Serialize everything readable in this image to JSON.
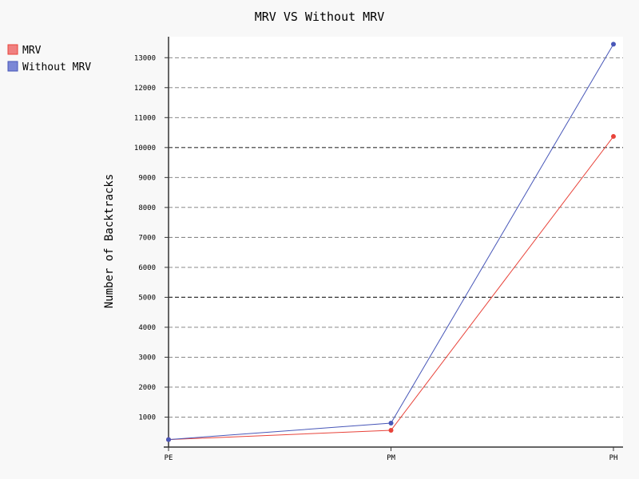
{
  "chart_data": {
    "type": "line",
    "title": "MRV VS Without MRV",
    "ylabel": "Number of Backtracks",
    "xlabel": "",
    "categories": [
      "PE",
      "PM",
      "PH"
    ],
    "ylim": [
      0,
      13700
    ],
    "yticks": [
      1000,
      2000,
      3000,
      4000,
      5000,
      6000,
      7000,
      8000,
      9000,
      10000,
      11000,
      12000,
      13000
    ],
    "major_yticks": [
      5000,
      10000
    ],
    "grid": "horizontal dashed",
    "legend": "top-left",
    "series": [
      {
        "name": "MRV",
        "color": "#e8433a",
        "values": [
          250,
          560,
          10370
        ]
      },
      {
        "name": "Without MRV",
        "color": "#4857b8",
        "values": [
          250,
          800,
          13450
        ]
      }
    ],
    "legend_fill": {
      "MRV": "#f08080",
      "Without MRV": "#7b87d6"
    }
  }
}
